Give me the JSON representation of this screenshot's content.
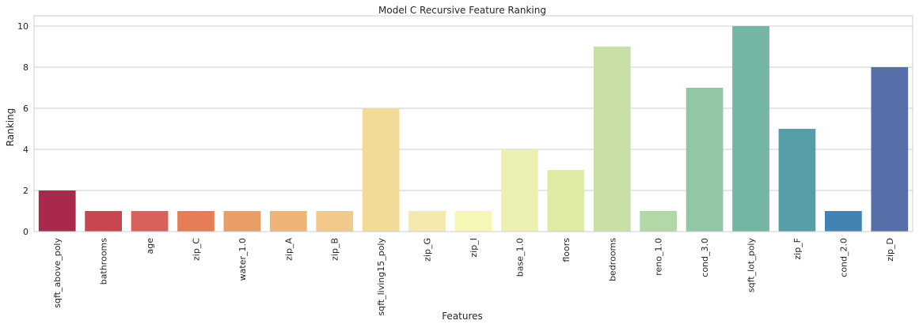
{
  "chart_data": {
    "type": "bar",
    "title": "Model C Recursive Feature Ranking",
    "xlabel": "Features",
    "ylabel": "Ranking",
    "categories": [
      "sqft_above_poly",
      "bathrooms",
      "age",
      "zip_C",
      "water_1.0",
      "zip_A",
      "zip_B",
      "sqft_living15_poly",
      "zip_G",
      "zip_I",
      "base_1.0",
      "floors",
      "bedrooms",
      "reno_1.0",
      "cond_3.0",
      "sqft_lot_poly",
      "zip_F",
      "cond_2.0",
      "zip_D"
    ],
    "values": [
      2,
      1,
      1,
      1,
      1,
      1,
      1,
      6,
      1,
      1,
      4,
      3,
      9,
      1,
      7,
      10,
      5,
      1,
      8
    ],
    "colors": [
      "#a8294b",
      "#c8474f",
      "#d8625a",
      "#e57e56",
      "#ea9e67",
      "#eeb476",
      "#f2c98b",
      "#f1dc97",
      "#f4e9ae",
      "#f6f7b7",
      "#ecf1b3",
      "#dfeda4",
      "#c8e0a4",
      "#b1d8a6",
      "#92c7a5",
      "#72b6a3",
      "#579fa8",
      "#4184b4",
      "#566fa8"
    ],
    "ylim": [
      0,
      10.5
    ],
    "yticks": [
      0,
      2,
      4,
      6,
      8,
      10
    ],
    "grid": true,
    "legend": "none"
  }
}
